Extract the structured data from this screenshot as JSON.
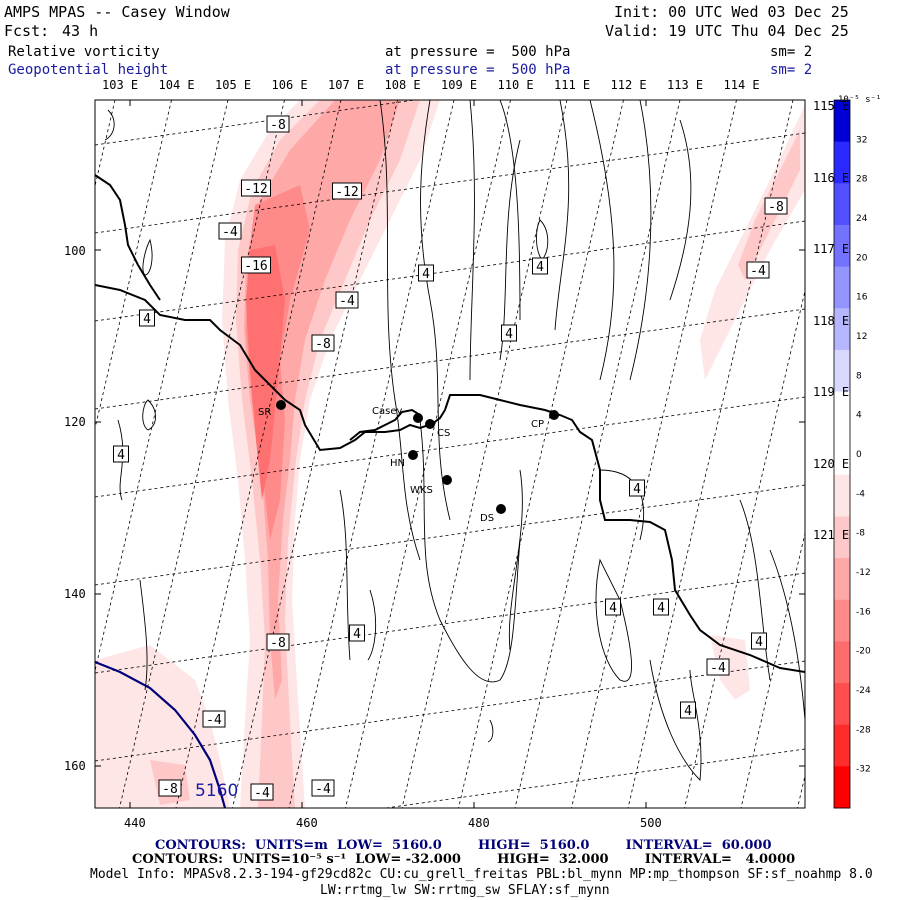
{
  "header": {
    "title": "AMPS MPAS -- Casey Window",
    "forecast_label": "Fcst:",
    "forecast_hours": "43 h",
    "init": "Init: 00 UTC Wed 03 Dec 25",
    "valid": "Valid: 19 UTC Thu 04 Dec 25",
    "field1_name": "Relative vorticity",
    "field1_level": "at pressure =  500 hPa",
    "field1_sm": "sm= 2",
    "field2_name": "Geopotential height",
    "field2_level": "at pressure =  500 hPa",
    "field2_sm": "sm= 2"
  },
  "top_lon_labels": [
    "103 E",
    "104 E",
    "105 E",
    "106 E",
    "107 E",
    "108 E",
    "109 E",
    "110 E",
    "111 E",
    "112 E",
    "113 E",
    "114 E"
  ],
  "right_lon_labels": [
    "115 E",
    "116 E",
    "117 E",
    "118 E",
    "119 E",
    "120 E",
    "121 E"
  ],
  "left_axis_ticks": [
    "100",
    "120",
    "140",
    "160"
  ],
  "bottom_axis_ticks": [
    "440",
    "460",
    "480",
    "500"
  ],
  "stations": [
    {
      "name": "SR"
    },
    {
      "name": "Casey"
    },
    {
      "name": "CS"
    },
    {
      "name": "HN"
    },
    {
      "name": "WKS"
    },
    {
      "name": "DS"
    },
    {
      "name": "CP"
    }
  ],
  "contour_labels": {
    "pos": "4",
    "neg4": "-4",
    "neg8": "-8",
    "neg12": "-12",
    "neg16": "-16",
    "height": "5160"
  },
  "colorbar": {
    "unit": "10⁻⁵ s⁻¹",
    "ticks": [
      "32",
      "28",
      "24",
      "20",
      "16",
      "12",
      "8",
      "4",
      "0",
      "-4",
      "-8",
      "-12",
      "-16",
      "-20",
      "-24",
      "-28",
      "-32"
    ],
    "colors": [
      "#0000d6",
      "#2a2aff",
      "#5050ff",
      "#7272ff",
      "#9494ff",
      "#b6b6ff",
      "#d8d8ff",
      "#ffffff",
      "#ffffff",
      "#ffe6e6",
      "#ffc8c8",
      "#ffa8a8",
      "#ff8a8a",
      "#ff6c6c",
      "#ff4e4e",
      "#ff2c2c",
      "#ff0000"
    ]
  },
  "footer": {
    "contours1": "CONTOURS:  UNITS=m  LOW=  5160.0        HIGH=  5160.0        INTERVAL=  60.000",
    "contours2": "CONTOURS:  UNITS=10⁻⁵ s⁻¹  LOW= -32.000        HIGH=  32.000        INTERVAL=   4.0000",
    "model_info": "Model Info: MPASv8.2.3-194-gf29cd82c CU:cu_grell_freitas PBL:bl_mynn MP:mp_thompson SF:sf_noahmp 8.0",
    "model_info2": "LW:rrtmg_lw SW:rrtmg_sw SFLAY:sf_mynn"
  }
}
